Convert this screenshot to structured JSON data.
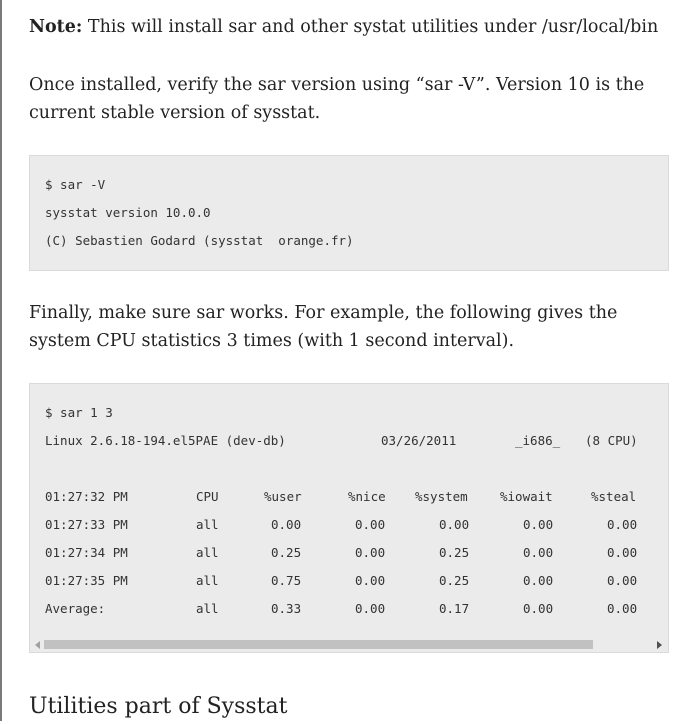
{
  "note": {
    "label": "Note:",
    "text": " This will install sar and other systat utilities under /usr/local/bin"
  },
  "verify_paragraph": "Once installed, verify the sar version using “sar -V”. Version 10 is the current stable version of sysstat.",
  "version_block": {
    "lines": [
      "$ sar -V",
      "sysstat version 10.0.0",
      "(C) Sebastien Godard (sysstat  orange.fr)"
    ]
  },
  "works_paragraph": "Finally, make sure sar works. For example, the following gives the system CPU statistics 3 times (with 1 second interval).",
  "sar_block": {
    "command": "$ sar 1 3",
    "header": {
      "system": "Linux 2.6.18-194.el5PAE (dev-db)",
      "date": "03/26/2011",
      "arch": "_i686_",
      "cpus": "(8 CPU)"
    },
    "columns": [
      "",
      "CPU",
      "%user",
      "%nice",
      "%system",
      "%iowait",
      "%steal"
    ],
    "rows": [
      [
        "01:27:33 PM",
        "all",
        "0.00",
        "0.00",
        "0.00",
        "0.00",
        "0.00"
      ],
      [
        "01:27:34 PM",
        "all",
        "0.25",
        "0.00",
        "0.25",
        "0.00",
        "0.00"
      ],
      [
        "01:27:35 PM",
        "all",
        "0.75",
        "0.00",
        "0.25",
        "0.00",
        "0.00"
      ],
      [
        "Average:",
        "all",
        "0.33",
        "0.00",
        "0.17",
        "0.00",
        "0.00"
      ]
    ],
    "header_time": "01:27:32 PM",
    "scroll_fraction": 0.86
  },
  "section_heading": "Utilities part of Sysstat"
}
